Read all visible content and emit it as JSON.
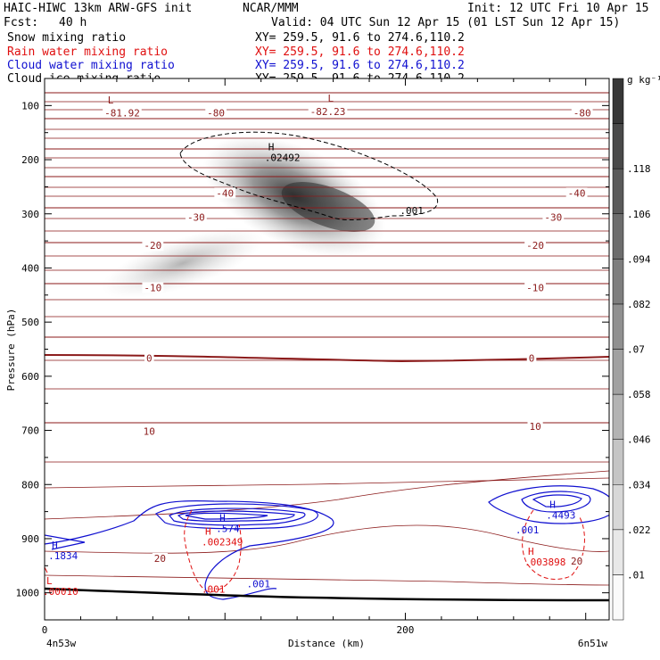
{
  "header": {
    "model": "HAIC-HIWC 13km ARW-GFS init",
    "center": "NCAR/MMM",
    "init": "Init: 12 UTC Fri 10 Apr 15",
    "fcst_label": "Fcst:",
    "fcst_value": "40 h",
    "valid": "Valid: 04 UTC Sun 12 Apr 15 (01 LST Sun 12 Apr 15)"
  },
  "fields": [
    {
      "name": "Snow mixing ratio",
      "xy": "XY= 259.5, 91.6 to 274.6,110.2",
      "color": "#000000"
    },
    {
      "name": "Rain water mixing ratio",
      "xy": "XY= 259.5, 91.6 to 274.6,110.2",
      "color": "#e01010"
    },
    {
      "name": "Cloud water mixing ratio",
      "xy": "XY= 259.5, 91.6 to 274.6,110.2",
      "color": "#1010d0"
    },
    {
      "name": "Cloud ice mixing ratio",
      "xy": "XY= 259.5, 91.6 to 274.6,110.2",
      "color": "#000000"
    }
  ],
  "chart_data": {
    "type": "heatmap",
    "xlabel": "Distance (km)",
    "ylabel": "Pressure (hPa)",
    "x_ticks": [
      0,
      200
    ],
    "x_range": [
      0,
      313
    ],
    "y_ticks": [
      100,
      200,
      300,
      400,
      500,
      600,
      700,
      800,
      900,
      1000
    ],
    "y_range": [
      50,
      1050
    ],
    "y_direction": "pressure decreasing upward",
    "left_endpoint": "4n53w",
    "right_endpoint": "6n51w",
    "colorbar": {
      "unit": "g kg⁻¹",
      "labels": [
        ".01",
        ".022",
        ".034",
        ".046",
        ".058",
        ".07",
        ".082",
        ".094",
        ".106",
        ".118"
      ]
    },
    "temperature_labels": [
      {
        "text": "-81.92",
        "x": 43,
        "p": 115
      },
      {
        "text": "-80",
        "x": 95,
        "p": 115
      },
      {
        "text": "-82.23",
        "x": 157,
        "p": 113
      },
      {
        "text": "-80",
        "x": 298,
        "p": 115
      },
      {
        "text": "-40",
        "x": 100,
        "p": 263
      },
      {
        "text": "-40",
        "x": 295,
        "p": 263
      },
      {
        "text": "-30",
        "x": 84,
        "p": 308
      },
      {
        "text": "-30",
        "x": 282,
        "p": 308
      },
      {
        "text": "-20",
        "x": 60,
        "p": 360
      },
      {
        "text": "-20",
        "x": 272,
        "p": 360
      },
      {
        "text": "-10",
        "x": 60,
        "p": 438
      },
      {
        "text": "-10",
        "x": 272,
        "p": 438
      },
      {
        "text": "0",
        "x": 58,
        "p": 568
      },
      {
        "text": "0",
        "x": 270,
        "p": 568
      },
      {
        "text": "10",
        "x": 58,
        "p": 703
      },
      {
        "text": "10",
        "x": 272,
        "p": 694
      },
      {
        "text": "20",
        "x": 64,
        "p": 938
      },
      {
        "text": "20",
        "x": 295,
        "p": 943
      }
    ],
    "extrema_labels": [
      {
        "kind": "L",
        "field": "temperature",
        "color": "#8b1a1a",
        "x": 35,
        "p": 96
      },
      {
        "kind": "L",
        "field": "temperature",
        "color": "#8b1a1a",
        "x": 157,
        "p": 93
      },
      {
        "kind": "H",
        "field": "snow",
        "value": ".02492",
        "color": "#000000",
        "x": 124,
        "p": 183
      },
      {
        "kind": "contour",
        "field": "snow",
        "value": ".001",
        "color": "#000000",
        "x": 197,
        "p": 300
      },
      {
        "kind": "H",
        "field": "cloud water",
        "value": ".574",
        "color": "#1010d0",
        "x": 97,
        "p": 868
      },
      {
        "kind": "H",
        "field": "rain",
        "value": ".002349",
        "color": "#e01010",
        "x": 89,
        "p": 893
      },
      {
        "kind": "H",
        "field": "cloud water",
        "value": ".1834",
        "color": "#1010d0",
        "x": 4,
        "p": 918
      },
      {
        "kind": "L",
        "field": "rain",
        "value": ".00010",
        "color": "#e01010",
        "x": 1,
        "p": 984
      },
      {
        "kind": "contour",
        "field": "rain",
        "value": ".001",
        "color": "#e01010",
        "x": 87,
        "p": 1000
      },
      {
        "kind": "contour",
        "field": "cloud water",
        "value": ".001",
        "color": "#1010d0",
        "x": 112,
        "p": 990
      },
      {
        "kind": "H",
        "field": "cloud water",
        "value": ".4493",
        "color": "#1010d0",
        "x": 280,
        "p": 843
      },
      {
        "kind": "contour",
        "field": "cloud water",
        "value": ".001",
        "color": "#1010d0",
        "x": 261,
        "p": 890
      },
      {
        "kind": "H",
        "field": "rain",
        "value": ".003898",
        "color": "#e01010",
        "x": 268,
        "p": 930
      }
    ],
    "snow_max": 0.02492,
    "rain_max": 0.003898,
    "cloud_water_max": 0.574
  }
}
